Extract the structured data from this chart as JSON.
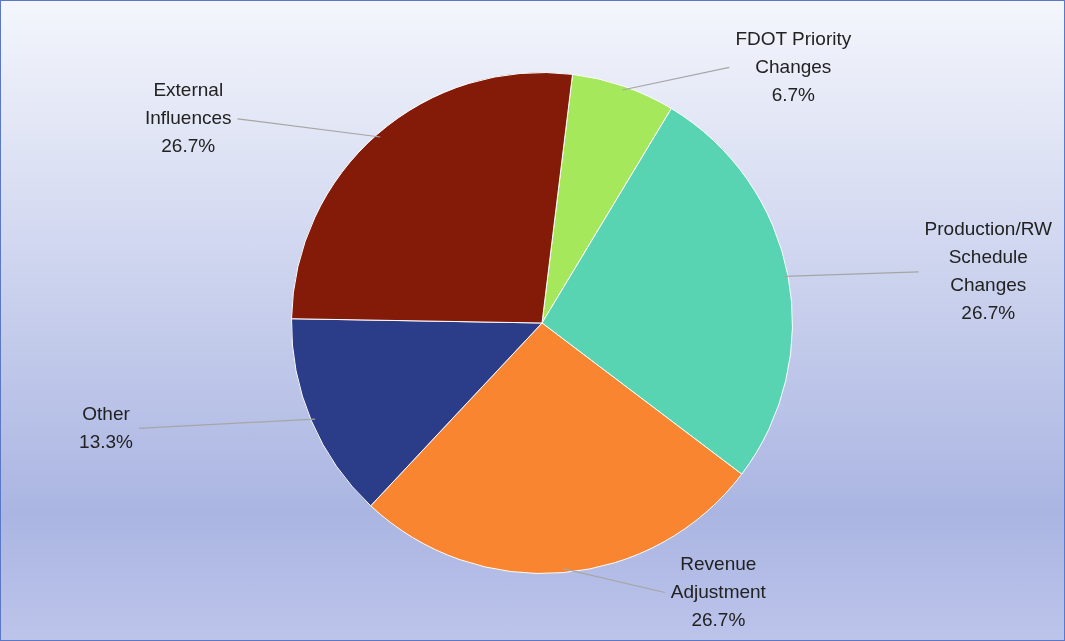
{
  "chart_data": {
    "type": "pie",
    "categories": [
      "FDOT Priority Changes",
      "Production/RW Schedule Changes",
      "Revenue Adjustment",
      "Other",
      "External Influences"
    ],
    "values": [
      6.7,
      26.7,
      26.7,
      13.3,
      26.7
    ],
    "value_labels": [
      "6.7%",
      "26.7%",
      "26.7%",
      "13.3%",
      "26.7%"
    ],
    "colors": [
      "#a6e85c",
      "#58d4b2",
      "#f98530",
      "#2b3c88",
      "#841a08"
    ],
    "legend": false
  }
}
